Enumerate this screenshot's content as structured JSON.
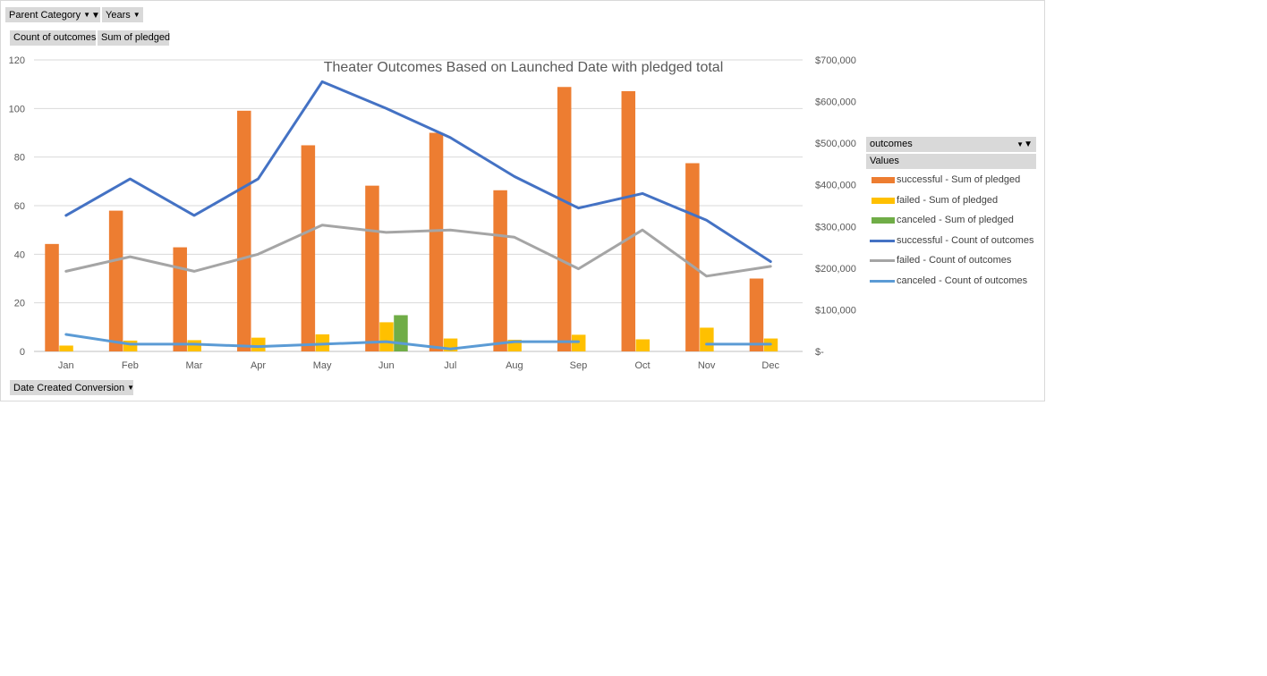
{
  "filters": {
    "parent_category": "Parent Category",
    "years": "Years",
    "count_of_outcomes": "Count of outcomes",
    "sum_of_pledged": "Sum of pledged",
    "date_created_conversion": "Date Created Conversion"
  },
  "legend": {
    "header": "outcomes",
    "values_label": "Values",
    "items": [
      {
        "label": "successful - Sum of pledged",
        "kind": "bar",
        "color": "#ED7D31"
      },
      {
        "label": "failed - Sum of pledged",
        "kind": "bar",
        "color": "#FFC000"
      },
      {
        "label": "canceled - Sum of pledged",
        "kind": "bar",
        "color": "#70AD47"
      },
      {
        "label": "successful - Count of outcomes",
        "kind": "line",
        "color": "#4472C4"
      },
      {
        "label": "failed - Count of outcomes",
        "kind": "line",
        "color": "#A5A5A5"
      },
      {
        "label": "canceled - Count of outcomes",
        "kind": "line",
        "color": "#5B9BD5"
      }
    ]
  },
  "chart_data": {
    "type": "bar",
    "title": "Theater Outcomes Based on Launched Date with pledged total",
    "categories": [
      "Jan",
      "Feb",
      "Mar",
      "Apr",
      "May",
      "Jun",
      "Jul",
      "Aug",
      "Sep",
      "Oct",
      "Nov",
      "Dec"
    ],
    "left_axis": {
      "min": 0,
      "max": 120,
      "ticks": [
        0,
        20,
        40,
        60,
        80,
        100,
        120
      ],
      "tick_labels": [
        "0",
        "20",
        "40",
        "60",
        "80",
        "100",
        "120"
      ]
    },
    "right_axis": {
      "min": 0,
      "max": 700000,
      "ticks": [
        0,
        100000,
        200000,
        300000,
        400000,
        500000,
        600000,
        700000
      ],
      "tick_labels": [
        "$-",
        "$100,000",
        "$200,000",
        "$300,000",
        "$400,000",
        "$500,000",
        "$600,000",
        "$700,000"
      ]
    },
    "bar_series": [
      {
        "name": "successful - Sum of pledged",
        "color": "#ED7D31",
        "values": [
          258000,
          338000,
          250000,
          578000,
          495000,
          398000,
          525000,
          387000,
          635000,
          625000,
          452000,
          175000
        ]
      },
      {
        "name": "failed - Sum of pledged",
        "color": "#FFC000",
        "values": [
          14000,
          26000,
          27000,
          33000,
          41000,
          70000,
          31000,
          28000,
          40000,
          29000,
          57000,
          31000
        ]
      },
      {
        "name": "canceled - Sum of pledged",
        "color": "#70AD47",
        "values": [
          0,
          0,
          0,
          0,
          0,
          87000,
          0,
          0,
          0,
          0,
          0,
          0
        ]
      }
    ],
    "line_series": [
      {
        "name": "successful - Count of outcomes",
        "color": "#4472C4",
        "width": 3,
        "values": [
          56,
          71,
          56,
          71,
          111,
          100,
          88,
          72,
          59,
          65,
          54,
          37
        ]
      },
      {
        "name": "failed - Count of outcomes",
        "color": "#A5A5A5",
        "width": 3,
        "values": [
          33,
          39,
          33,
          40,
          52,
          49,
          50,
          47,
          34,
          50,
          31,
          35
        ]
      },
      {
        "name": "canceled - Count of outcomes",
        "color": "#5B9BD5",
        "width": 3,
        "values": [
          7,
          3,
          3,
          2,
          3,
          4,
          1,
          4,
          4,
          null,
          3,
          3
        ]
      }
    ],
    "grid": true,
    "legend_position": "right"
  }
}
